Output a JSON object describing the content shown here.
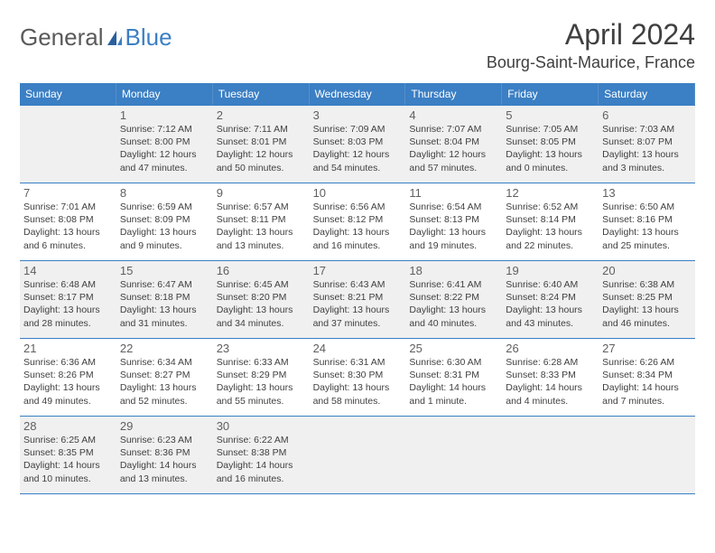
{
  "logo": {
    "text1": "General",
    "text2": "Blue"
  },
  "title": "April 2024",
  "location": "Bourg-Saint-Maurice, France",
  "colors": {
    "header_bg": "#3b7fc4",
    "header_text": "#ffffff",
    "border": "#3b7fc4",
    "shaded_bg": "#f0f0f0",
    "text": "#404040",
    "daynum": "#606060",
    "logo_gray": "#5a5a5a",
    "logo_blue": "#3b7fc4"
  },
  "dow": [
    "Sunday",
    "Monday",
    "Tuesday",
    "Wednesday",
    "Thursday",
    "Friday",
    "Saturday"
  ],
  "rows": [
    {
      "shaded": true,
      "cells": [
        {
          "day": "",
          "sunrise": "",
          "sunset": "",
          "daylight1": "",
          "daylight2": ""
        },
        {
          "day": "1",
          "sunrise": "Sunrise: 7:12 AM",
          "sunset": "Sunset: 8:00 PM",
          "daylight1": "Daylight: 12 hours",
          "daylight2": "and 47 minutes."
        },
        {
          "day": "2",
          "sunrise": "Sunrise: 7:11 AM",
          "sunset": "Sunset: 8:01 PM",
          "daylight1": "Daylight: 12 hours",
          "daylight2": "and 50 minutes."
        },
        {
          "day": "3",
          "sunrise": "Sunrise: 7:09 AM",
          "sunset": "Sunset: 8:03 PM",
          "daylight1": "Daylight: 12 hours",
          "daylight2": "and 54 minutes."
        },
        {
          "day": "4",
          "sunrise": "Sunrise: 7:07 AM",
          "sunset": "Sunset: 8:04 PM",
          "daylight1": "Daylight: 12 hours",
          "daylight2": "and 57 minutes."
        },
        {
          "day": "5",
          "sunrise": "Sunrise: 7:05 AM",
          "sunset": "Sunset: 8:05 PM",
          "daylight1": "Daylight: 13 hours",
          "daylight2": "and 0 minutes."
        },
        {
          "day": "6",
          "sunrise": "Sunrise: 7:03 AM",
          "sunset": "Sunset: 8:07 PM",
          "daylight1": "Daylight: 13 hours",
          "daylight2": "and 3 minutes."
        }
      ]
    },
    {
      "shaded": false,
      "cells": [
        {
          "day": "7",
          "sunrise": "Sunrise: 7:01 AM",
          "sunset": "Sunset: 8:08 PM",
          "daylight1": "Daylight: 13 hours",
          "daylight2": "and 6 minutes."
        },
        {
          "day": "8",
          "sunrise": "Sunrise: 6:59 AM",
          "sunset": "Sunset: 8:09 PM",
          "daylight1": "Daylight: 13 hours",
          "daylight2": "and 9 minutes."
        },
        {
          "day": "9",
          "sunrise": "Sunrise: 6:57 AM",
          "sunset": "Sunset: 8:11 PM",
          "daylight1": "Daylight: 13 hours",
          "daylight2": "and 13 minutes."
        },
        {
          "day": "10",
          "sunrise": "Sunrise: 6:56 AM",
          "sunset": "Sunset: 8:12 PM",
          "daylight1": "Daylight: 13 hours",
          "daylight2": "and 16 minutes."
        },
        {
          "day": "11",
          "sunrise": "Sunrise: 6:54 AM",
          "sunset": "Sunset: 8:13 PM",
          "daylight1": "Daylight: 13 hours",
          "daylight2": "and 19 minutes."
        },
        {
          "day": "12",
          "sunrise": "Sunrise: 6:52 AM",
          "sunset": "Sunset: 8:14 PM",
          "daylight1": "Daylight: 13 hours",
          "daylight2": "and 22 minutes."
        },
        {
          "day": "13",
          "sunrise": "Sunrise: 6:50 AM",
          "sunset": "Sunset: 8:16 PM",
          "daylight1": "Daylight: 13 hours",
          "daylight2": "and 25 minutes."
        }
      ]
    },
    {
      "shaded": true,
      "cells": [
        {
          "day": "14",
          "sunrise": "Sunrise: 6:48 AM",
          "sunset": "Sunset: 8:17 PM",
          "daylight1": "Daylight: 13 hours",
          "daylight2": "and 28 minutes."
        },
        {
          "day": "15",
          "sunrise": "Sunrise: 6:47 AM",
          "sunset": "Sunset: 8:18 PM",
          "daylight1": "Daylight: 13 hours",
          "daylight2": "and 31 minutes."
        },
        {
          "day": "16",
          "sunrise": "Sunrise: 6:45 AM",
          "sunset": "Sunset: 8:20 PM",
          "daylight1": "Daylight: 13 hours",
          "daylight2": "and 34 minutes."
        },
        {
          "day": "17",
          "sunrise": "Sunrise: 6:43 AM",
          "sunset": "Sunset: 8:21 PM",
          "daylight1": "Daylight: 13 hours",
          "daylight2": "and 37 minutes."
        },
        {
          "day": "18",
          "sunrise": "Sunrise: 6:41 AM",
          "sunset": "Sunset: 8:22 PM",
          "daylight1": "Daylight: 13 hours",
          "daylight2": "and 40 minutes."
        },
        {
          "day": "19",
          "sunrise": "Sunrise: 6:40 AM",
          "sunset": "Sunset: 8:24 PM",
          "daylight1": "Daylight: 13 hours",
          "daylight2": "and 43 minutes."
        },
        {
          "day": "20",
          "sunrise": "Sunrise: 6:38 AM",
          "sunset": "Sunset: 8:25 PM",
          "daylight1": "Daylight: 13 hours",
          "daylight2": "and 46 minutes."
        }
      ]
    },
    {
      "shaded": false,
      "cells": [
        {
          "day": "21",
          "sunrise": "Sunrise: 6:36 AM",
          "sunset": "Sunset: 8:26 PM",
          "daylight1": "Daylight: 13 hours",
          "daylight2": "and 49 minutes."
        },
        {
          "day": "22",
          "sunrise": "Sunrise: 6:34 AM",
          "sunset": "Sunset: 8:27 PM",
          "daylight1": "Daylight: 13 hours",
          "daylight2": "and 52 minutes."
        },
        {
          "day": "23",
          "sunrise": "Sunrise: 6:33 AM",
          "sunset": "Sunset: 8:29 PM",
          "daylight1": "Daylight: 13 hours",
          "daylight2": "and 55 minutes."
        },
        {
          "day": "24",
          "sunrise": "Sunrise: 6:31 AM",
          "sunset": "Sunset: 8:30 PM",
          "daylight1": "Daylight: 13 hours",
          "daylight2": "and 58 minutes."
        },
        {
          "day": "25",
          "sunrise": "Sunrise: 6:30 AM",
          "sunset": "Sunset: 8:31 PM",
          "daylight1": "Daylight: 14 hours",
          "daylight2": "and 1 minute."
        },
        {
          "day": "26",
          "sunrise": "Sunrise: 6:28 AM",
          "sunset": "Sunset: 8:33 PM",
          "daylight1": "Daylight: 14 hours",
          "daylight2": "and 4 minutes."
        },
        {
          "day": "27",
          "sunrise": "Sunrise: 6:26 AM",
          "sunset": "Sunset: 8:34 PM",
          "daylight1": "Daylight: 14 hours",
          "daylight2": "and 7 minutes."
        }
      ]
    },
    {
      "shaded": true,
      "cells": [
        {
          "day": "28",
          "sunrise": "Sunrise: 6:25 AM",
          "sunset": "Sunset: 8:35 PM",
          "daylight1": "Daylight: 14 hours",
          "daylight2": "and 10 minutes."
        },
        {
          "day": "29",
          "sunrise": "Sunrise: 6:23 AM",
          "sunset": "Sunset: 8:36 PM",
          "daylight1": "Daylight: 14 hours",
          "daylight2": "and 13 minutes."
        },
        {
          "day": "30",
          "sunrise": "Sunrise: 6:22 AM",
          "sunset": "Sunset: 8:38 PM",
          "daylight1": "Daylight: 14 hours",
          "daylight2": "and 16 minutes."
        },
        {
          "day": "",
          "sunrise": "",
          "sunset": "",
          "daylight1": "",
          "daylight2": ""
        },
        {
          "day": "",
          "sunrise": "",
          "sunset": "",
          "daylight1": "",
          "daylight2": ""
        },
        {
          "day": "",
          "sunrise": "",
          "sunset": "",
          "daylight1": "",
          "daylight2": ""
        },
        {
          "day": "",
          "sunrise": "",
          "sunset": "",
          "daylight1": "",
          "daylight2": ""
        }
      ]
    }
  ]
}
